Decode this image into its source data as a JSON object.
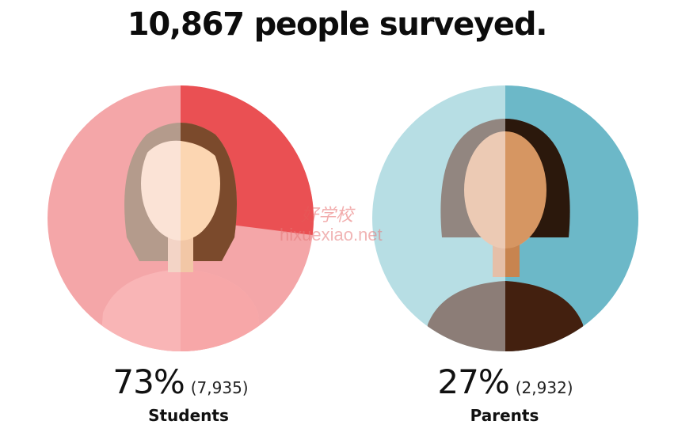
{
  "title": "10,867 people surveyed.",
  "watermark": {
    "cn": "好学校",
    "url": "hixuexiao.net"
  },
  "colors": {
    "students_light": "#f4a6a8",
    "students_accent": "#ea5053",
    "parents_light": "#b7dee4",
    "parents_accent": "#6cb8c8"
  },
  "chart_data": {
    "type": "pie",
    "title": "10,867 people surveyed.",
    "total": 10867,
    "slices": [
      {
        "label": "Students",
        "percent": 73,
        "percent_text": "73%",
        "count": 7935,
        "count_text": "(7,935)",
        "icon": "female-student-avatar-icon"
      },
      {
        "label": "Parents",
        "percent": 27,
        "percent_text": "27%",
        "count": 2932,
        "count_text": "(2,932)",
        "icon": "female-parent-avatar-icon"
      }
    ]
  }
}
